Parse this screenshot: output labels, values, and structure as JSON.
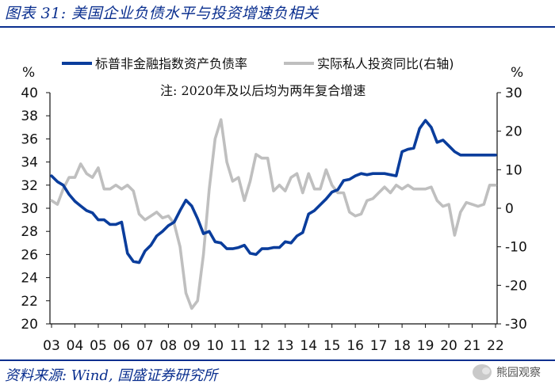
{
  "figure": {
    "title": "图表 31:  美国企业负债水平与投资增速负相关",
    "source": "资料来源:  Wind,  国盛证券研究所",
    "watermark": "熊园观察"
  },
  "colors": {
    "frame": "#0a2f8f",
    "series_left": "#0a3d9c",
    "series_right": "#bfbfbf"
  },
  "chart_data": {
    "type": "line",
    "annotation": "注:  2020年及以后均为两年复合增速",
    "x_tick_labels": [
      "03",
      "04",
      "05",
      "06",
      "07",
      "08",
      "09",
      "10",
      "11",
      "12",
      "13",
      "14",
      "15",
      "16",
      "17",
      "18",
      "19",
      "20",
      "21",
      "22"
    ],
    "x_range": [
      2003.0,
      2022.0
    ],
    "left_axis": {
      "unit": "%",
      "ylim": [
        20,
        40
      ],
      "ticks": [
        20,
        22,
        24,
        26,
        28,
        30,
        32,
        34,
        36,
        38,
        40
      ]
    },
    "right_axis": {
      "unit": "%",
      "ylim": [
        -30,
        30
      ],
      "ticks": [
        -30,
        -20,
        -10,
        0,
        10,
        20,
        30
      ]
    },
    "series": [
      {
        "name": "标普非金融指数资产负债率",
        "axis": "left",
        "x": [
          2003.0,
          2003.25,
          2003.5,
          2003.75,
          2004.0,
          2004.25,
          2004.5,
          2004.75,
          2005.0,
          2005.25,
          2005.5,
          2005.75,
          2006.0,
          2006.25,
          2006.5,
          2006.75,
          2007.0,
          2007.25,
          2007.5,
          2007.75,
          2008.0,
          2008.25,
          2008.5,
          2008.75,
          2009.0,
          2009.25,
          2009.5,
          2009.75,
          2010.0,
          2010.25,
          2010.5,
          2010.75,
          2011.0,
          2011.25,
          2011.5,
          2011.75,
          2012.0,
          2012.25,
          2012.5,
          2012.75,
          2013.0,
          2013.25,
          2013.5,
          2013.75,
          2014.0,
          2014.25,
          2014.5,
          2014.75,
          2015.0,
          2015.25,
          2015.5,
          2015.75,
          2016.0,
          2016.25,
          2016.5,
          2016.75,
          2017.0,
          2017.25,
          2017.5,
          2017.75,
          2018.0,
          2018.25,
          2018.5,
          2018.75,
          2019.0,
          2019.25,
          2019.5,
          2019.75,
          2020.0,
          2020.25,
          2020.5,
          2020.75,
          2021.0,
          2021.25,
          2021.5,
          2021.75,
          2022.0
        ],
        "values": [
          32.8,
          32.3,
          32.0,
          31.2,
          30.6,
          30.2,
          29.8,
          29.6,
          29.0,
          29.0,
          28.6,
          28.6,
          28.8,
          26.1,
          25.4,
          25.3,
          26.3,
          26.8,
          27.6,
          28.0,
          28.5,
          28.8,
          29.8,
          30.7,
          30.2,
          29.1,
          27.8,
          28.0,
          27.1,
          27.0,
          26.5,
          26.5,
          26.6,
          26.8,
          26.1,
          26.0,
          26.5,
          26.5,
          26.6,
          26.6,
          27.1,
          27.0,
          27.6,
          27.9,
          29.5,
          29.8,
          30.3,
          30.8,
          31.4,
          31.6,
          32.4,
          32.5,
          32.8,
          33.0,
          32.9,
          33.0,
          33.0,
          33.0,
          32.9,
          32.8,
          34.9,
          35.1,
          35.2,
          36.9,
          37.6,
          37.0,
          35.7,
          35.9,
          35.4,
          34.9,
          34.6,
          34.6,
          34.6,
          34.6,
          34.6,
          34.6,
          34.6
        ]
      },
      {
        "name": "实际私人投资同比(右轴)",
        "axis": "right",
        "x": [
          2003.0,
          2003.25,
          2003.5,
          2003.75,
          2004.0,
          2004.25,
          2004.5,
          2004.75,
          2005.0,
          2005.25,
          2005.5,
          2005.75,
          2006.0,
          2006.25,
          2006.5,
          2006.75,
          2007.0,
          2007.25,
          2007.5,
          2007.75,
          2008.0,
          2008.25,
          2008.5,
          2008.75,
          2009.0,
          2009.25,
          2009.5,
          2009.75,
          2010.0,
          2010.25,
          2010.5,
          2010.75,
          2011.0,
          2011.25,
          2011.5,
          2011.75,
          2012.0,
          2012.25,
          2012.5,
          2012.75,
          2013.0,
          2013.25,
          2013.5,
          2013.75,
          2014.0,
          2014.25,
          2014.5,
          2014.75,
          2015.0,
          2015.25,
          2015.5,
          2015.75,
          2016.0,
          2016.25,
          2016.5,
          2016.75,
          2017.0,
          2017.25,
          2017.5,
          2017.75,
          2018.0,
          2018.25,
          2018.5,
          2018.75,
          2019.0,
          2019.25,
          2019.5,
          2019.75,
          2020.0,
          2020.25,
          2020.5,
          2020.75,
          2021.0,
          2021.25,
          2021.5,
          2021.75,
          2022.0
        ],
        "values": [
          2.0,
          1.0,
          5.0,
          8.0,
          8.0,
          11.5,
          9.0,
          8.0,
          10.5,
          5.0,
          5.0,
          6.0,
          5.0,
          6.0,
          4.5,
          -1.5,
          -3.0,
          -2.0,
          -1.0,
          -2.5,
          -2.0,
          -4.0,
          -10.0,
          -22.0,
          -26.0,
          -24.0,
          -12.0,
          5.0,
          18.0,
          23.0,
          12.0,
          7.0,
          8.0,
          2.0,
          7.0,
          14.0,
          13.0,
          13.0,
          4.5,
          6.0,
          4.5,
          8.0,
          9.0,
          4.0,
          9.0,
          5.0,
          5.0,
          10.0,
          6.0,
          4.0,
          4.0,
          -1.0,
          -2.0,
          -1.5,
          2.0,
          2.5,
          4.0,
          5.5,
          4.0,
          6.0,
          5.0,
          6.0,
          5.0,
          5.0,
          5.0,
          5.5,
          2.0,
          0.5,
          1.0,
          -7.0,
          -1.0,
          1.5,
          1.0,
          0.5,
          1.0,
          6.0,
          6.0
        ]
      }
    ]
  }
}
